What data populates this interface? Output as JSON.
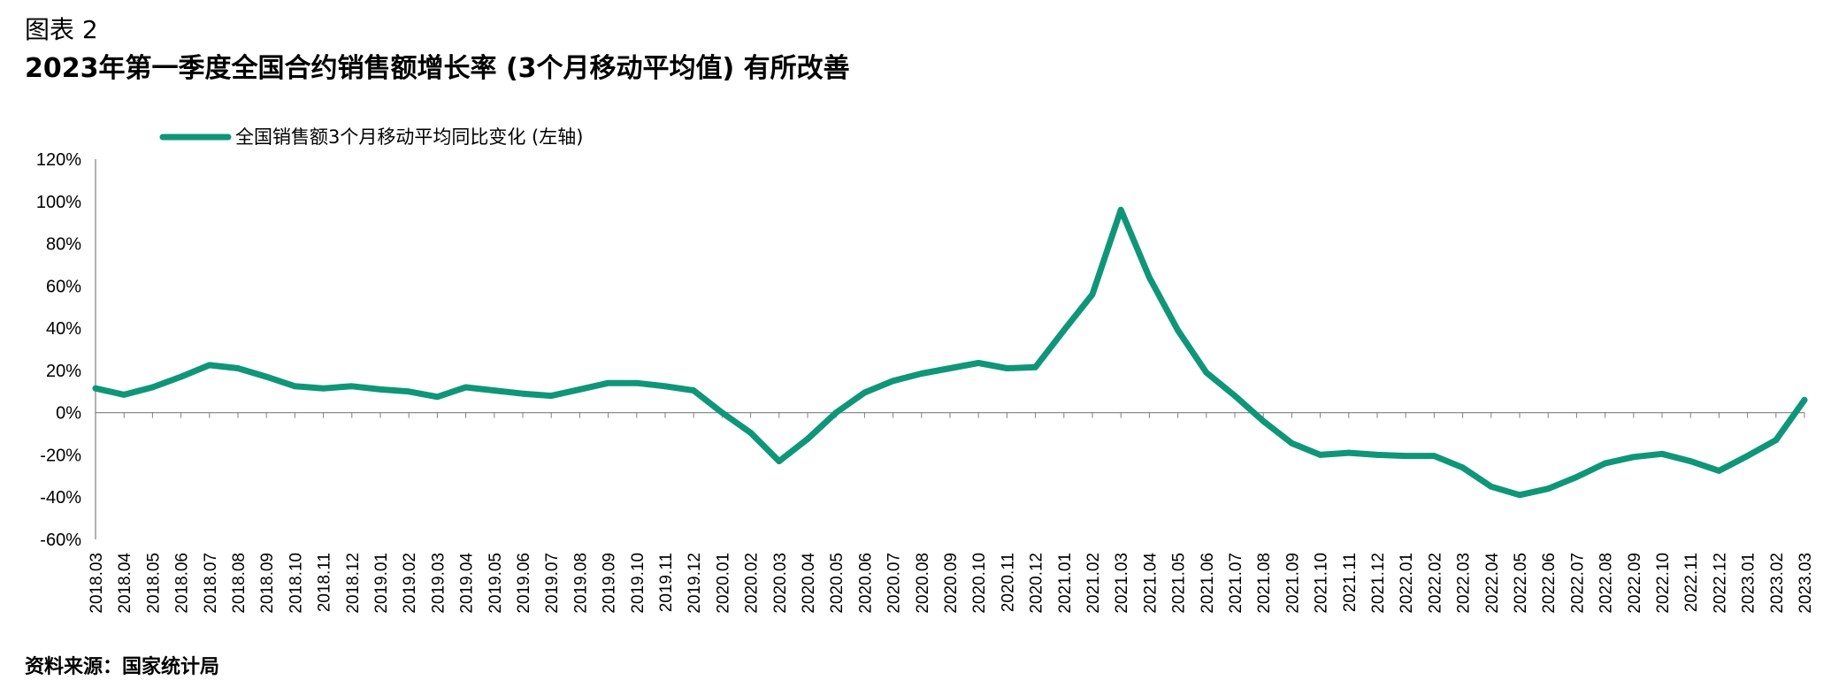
{
  "figure_label": "图表 2",
  "title": "2023年第一季度全国合约销售额增长率 (3个月移动平均值) 有所改善",
  "source": "资料来源：国家统计局",
  "colors": {
    "series": "#0f9678",
    "axis": "#7f7f7f"
  },
  "chart_data": {
    "type": "line",
    "legend_position": "top-left",
    "grid": false,
    "ylim": [
      -60,
      120
    ],
    "yticks": [
      -60,
      -40,
      -20,
      0,
      20,
      40,
      60,
      80,
      100,
      120
    ],
    "ytick_labels": [
      "-60%",
      "-40%",
      "-20%",
      "0%",
      "20%",
      "40%",
      "60%",
      "80%",
      "100%",
      "120%"
    ],
    "categories": [
      "2018.03",
      "2018.04",
      "2018.05",
      "2018.06",
      "2018.07",
      "2018.08",
      "2018.09",
      "2018.10",
      "2018.11",
      "2018.12",
      "2019.01",
      "2019.02",
      "2019.03",
      "2019.04",
      "2019.05",
      "2019.06",
      "2019.07",
      "2019.08",
      "2019.09",
      "2019.10",
      "2019.11",
      "2019.12",
      "2020.01",
      "2020.02",
      "2020.03",
      "2020.04",
      "2020.05",
      "2020.06",
      "2020.07",
      "2020.08",
      "2020.09",
      "2020.10",
      "2020.11",
      "2020.12",
      "2021.01",
      "2021.02",
      "2021.03",
      "2021.04",
      "2021.05",
      "2021.06",
      "2021.07",
      "2021.08",
      "2021.09",
      "2021.10",
      "2021.11",
      "2021.12",
      "2022.01",
      "2022.02",
      "2022.03",
      "2022.04",
      "2022.05",
      "2022.06",
      "2022.07",
      "2022.08",
      "2022.09",
      "2022.10",
      "2022.11",
      "2022.12",
      "2023.01",
      "2023.02",
      "2023.03"
    ],
    "series": [
      {
        "name": "全国销售额3个月移动平均同比变化 (左轴)",
        "values": [
          11.5,
          8.5,
          12,
          17,
          22.5,
          21,
          17,
          12.5,
          11.5,
          12.5,
          11,
          10,
          7.5,
          12,
          10.5,
          9,
          8,
          11,
          14,
          14,
          12.5,
          10.5,
          0,
          -9.5,
          -23,
          -12.5,
          0,
          9.5,
          15,
          18.5,
          21,
          23.5,
          21,
          21.5,
          39,
          56,
          96,
          64,
          39,
          19,
          8,
          -4,
          -14.5,
          -20,
          -19,
          -20,
          -20.5,
          -20.5,
          -26,
          -35,
          -39,
          -36,
          -30.5,
          -24,
          -21,
          -19.5,
          -23,
          -27.5,
          -20.5,
          -13,
          6
        ]
      }
    ]
  }
}
